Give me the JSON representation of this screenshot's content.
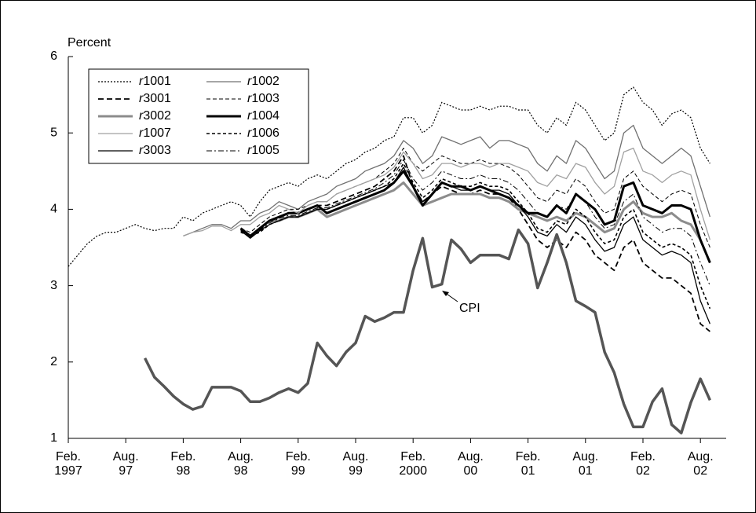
{
  "chart_data": {
    "type": "line",
    "y_label": "Percent",
    "annotation": "CPI",
    "ylim": [
      1,
      6
    ],
    "yticks": [
      1,
      2,
      3,
      4,
      5,
      6
    ],
    "categories": [
      "Feb.\n1997",
      null,
      null,
      null,
      null,
      null,
      "Aug.\n97",
      null,
      null,
      null,
      null,
      null,
      "Feb.\n98",
      null,
      null,
      null,
      null,
      null,
      "Aug.\n98",
      null,
      null,
      null,
      null,
      null,
      "Feb.\n99",
      null,
      null,
      null,
      null,
      null,
      "Aug.\n99",
      null,
      null,
      null,
      null,
      null,
      "Feb.\n2000",
      null,
      null,
      null,
      null,
      null,
      "Aug.\n00",
      null,
      null,
      null,
      null,
      null,
      "Feb.\n01",
      null,
      null,
      null,
      null,
      null,
      "Aug.\n01",
      null,
      null,
      null,
      null,
      null,
      "Feb.\n02",
      null,
      null,
      null,
      null,
      null,
      "Aug.\n02",
      null
    ],
    "series": [
      {
        "name": "r1001",
        "color": "#000000",
        "width": 1.2,
        "dash": "2,2",
        "values": [
          3.25,
          3.4,
          3.55,
          3.65,
          3.7,
          3.7,
          3.75,
          3.8,
          3.75,
          3.72,
          3.75,
          3.75,
          3.9,
          3.85,
          3.95,
          4.0,
          4.05,
          4.1,
          4.05,
          3.9,
          4.1,
          4.25,
          4.3,
          4.35,
          4.3,
          4.4,
          4.45,
          4.4,
          4.5,
          4.6,
          4.65,
          4.75,
          4.8,
          4.9,
          4.95,
          5.2,
          5.2,
          5.0,
          5.1,
          5.4,
          5.35,
          5.3,
          5.3,
          5.35,
          5.3,
          5.35,
          5.35,
          5.3,
          5.3,
          5.1,
          5.0,
          5.2,
          5.1,
          5.4,
          5.3,
          5.1,
          4.9,
          5.0,
          5.5,
          5.6,
          5.4,
          5.3,
          5.1,
          5.25,
          5.3,
          5.2,
          4.8,
          4.6
        ]
      },
      {
        "name": "r1002",
        "color": "#707070",
        "width": 1.3,
        "dash": "none",
        "values": [
          null,
          null,
          null,
          null,
          null,
          null,
          null,
          null,
          null,
          null,
          null,
          null,
          3.65,
          3.7,
          3.75,
          3.8,
          3.8,
          3.75,
          3.85,
          3.85,
          3.95,
          4.0,
          4.1,
          4.05,
          4.0,
          4.1,
          4.15,
          4.2,
          4.3,
          4.35,
          4.4,
          4.5,
          4.55,
          4.6,
          4.7,
          4.9,
          4.8,
          4.6,
          4.7,
          4.95,
          4.9,
          4.85,
          4.9,
          4.95,
          4.8,
          4.9,
          4.9,
          4.85,
          4.8,
          4.6,
          4.5,
          4.7,
          4.6,
          4.9,
          4.8,
          4.6,
          4.4,
          4.5,
          5.0,
          5.1,
          4.8,
          4.7,
          4.6,
          4.7,
          4.8,
          4.7,
          4.3,
          3.9
        ]
      },
      {
        "name": "r3001",
        "color": "#000000",
        "width": 1.8,
        "dash": "7,4",
        "values": [
          null,
          null,
          null,
          null,
          null,
          null,
          null,
          null,
          null,
          null,
          null,
          null,
          null,
          null,
          null,
          null,
          null,
          null,
          3.75,
          3.65,
          3.75,
          3.85,
          3.9,
          3.95,
          3.95,
          4.0,
          4.05,
          4.05,
          4.1,
          4.15,
          4.2,
          4.25,
          4.3,
          4.4,
          4.5,
          4.7,
          4.3,
          4.1,
          4.2,
          4.3,
          4.25,
          4.2,
          4.2,
          4.25,
          4.2,
          4.2,
          4.15,
          4.0,
          3.8,
          3.6,
          3.5,
          3.6,
          3.5,
          3.7,
          3.6,
          3.4,
          3.3,
          3.2,
          3.5,
          3.6,
          3.3,
          3.2,
          3.1,
          3.1,
          3.0,
          2.9,
          2.5,
          2.4
        ]
      },
      {
        "name": "r1003",
        "color": "#000000",
        "width": 1,
        "dash": "5,3",
        "values": [
          null,
          null,
          null,
          null,
          null,
          null,
          null,
          null,
          null,
          null,
          null,
          null,
          null,
          null,
          null,
          null,
          null,
          null,
          3.75,
          3.7,
          3.8,
          3.9,
          3.95,
          4.0,
          4.0,
          4.05,
          4.1,
          4.1,
          4.2,
          4.25,
          4.3,
          4.35,
          4.4,
          4.5,
          4.6,
          4.8,
          4.6,
          4.5,
          4.6,
          4.7,
          4.65,
          4.6,
          4.6,
          4.65,
          4.6,
          4.6,
          4.55,
          4.45,
          4.3,
          4.15,
          4.1,
          4.25,
          4.2,
          4.4,
          4.3,
          4.1,
          3.95,
          4.0,
          4.4,
          4.5,
          4.3,
          4.2,
          4.1,
          4.2,
          4.25,
          4.2,
          3.8,
          3.5
        ]
      },
      {
        "name": "r3002",
        "color": "#8c8c8c",
        "width": 3,
        "dash": "none",
        "values": [
          null,
          null,
          null,
          null,
          null,
          null,
          null,
          null,
          null,
          null,
          null,
          null,
          null,
          null,
          null,
          null,
          null,
          null,
          3.75,
          3.65,
          3.75,
          3.85,
          3.85,
          3.9,
          3.9,
          3.95,
          4.0,
          3.9,
          3.95,
          4.0,
          4.05,
          4.1,
          4.15,
          4.2,
          4.25,
          4.35,
          4.2,
          4.05,
          4.1,
          4.15,
          4.2,
          4.2,
          4.2,
          4.2,
          4.15,
          4.15,
          4.1,
          4.0,
          3.95,
          3.9,
          3.85,
          3.9,
          3.85,
          3.95,
          3.9,
          3.8,
          3.7,
          3.75,
          4.0,
          4.1,
          3.95,
          3.9,
          3.9,
          3.95,
          3.85,
          3.8,
          3.6,
          3.3
        ]
      },
      {
        "name": "r1004",
        "color": "#000000",
        "width": 3,
        "dash": "none",
        "values": [
          null,
          null,
          null,
          null,
          null,
          null,
          null,
          null,
          null,
          null,
          null,
          null,
          null,
          null,
          null,
          null,
          null,
          null,
          3.75,
          3.65,
          3.75,
          3.85,
          3.9,
          3.95,
          3.95,
          4.0,
          4.05,
          3.95,
          4.0,
          4.05,
          4.1,
          4.15,
          4.2,
          4.25,
          4.35,
          4.5,
          4.3,
          4.05,
          4.2,
          4.35,
          4.3,
          4.3,
          4.25,
          4.3,
          4.25,
          4.2,
          4.15,
          4.05,
          3.95,
          3.95,
          3.9,
          4.05,
          3.95,
          4.2,
          4.1,
          4.0,
          3.8,
          3.85,
          4.3,
          4.35,
          4.05,
          4.0,
          3.95,
          4.05,
          4.05,
          4.0,
          3.6,
          3.3
        ]
      },
      {
        "name": "r1007",
        "color": "#a0a0a0",
        "width": 1.3,
        "dash": "none",
        "values": [
          null,
          null,
          null,
          null,
          null,
          null,
          null,
          null,
          null,
          null,
          null,
          null,
          3.65,
          3.7,
          3.72,
          3.78,
          3.78,
          3.72,
          3.8,
          3.8,
          3.9,
          3.95,
          4.05,
          4.0,
          3.95,
          4.05,
          4.1,
          4.1,
          4.2,
          4.25,
          4.3,
          4.35,
          4.4,
          4.45,
          4.55,
          4.75,
          4.6,
          4.4,
          4.45,
          4.6,
          4.6,
          4.55,
          4.6,
          4.6,
          4.55,
          4.6,
          4.6,
          4.55,
          4.5,
          4.35,
          4.3,
          4.45,
          4.4,
          4.6,
          4.55,
          4.35,
          4.2,
          4.3,
          4.75,
          4.8,
          4.5,
          4.45,
          4.35,
          4.45,
          4.5,
          4.45,
          4.0,
          3.6
        ]
      },
      {
        "name": "r1006",
        "color": "#000000",
        "width": 1.6,
        "dash": "4,3",
        "values": [
          null,
          null,
          null,
          null,
          null,
          null,
          null,
          null,
          null,
          null,
          null,
          null,
          null,
          null,
          null,
          null,
          null,
          null,
          3.7,
          3.65,
          3.7,
          3.8,
          3.85,
          3.9,
          3.9,
          3.95,
          4.0,
          4.0,
          4.05,
          4.1,
          4.15,
          4.2,
          4.25,
          4.3,
          4.4,
          4.6,
          4.35,
          4.15,
          4.25,
          4.4,
          4.35,
          4.3,
          4.3,
          4.35,
          4.3,
          4.3,
          4.25,
          4.1,
          3.95,
          3.75,
          3.7,
          3.85,
          3.8,
          4.0,
          3.9,
          3.7,
          3.55,
          3.6,
          3.9,
          4.0,
          3.7,
          3.6,
          3.5,
          3.55,
          3.5,
          3.4,
          3.0,
          2.7
        ]
      },
      {
        "name": "r3003",
        "color": "#000000",
        "width": 1.3,
        "dash": "none",
        "values": [
          null,
          null,
          null,
          null,
          null,
          null,
          null,
          null,
          null,
          null,
          null,
          null,
          null,
          null,
          null,
          null,
          null,
          null,
          3.72,
          3.62,
          3.72,
          3.8,
          3.85,
          3.9,
          3.9,
          3.95,
          4.0,
          4.0,
          4.05,
          4.1,
          4.15,
          4.2,
          4.25,
          4.3,
          4.35,
          4.55,
          4.3,
          4.1,
          4.2,
          4.35,
          4.3,
          4.25,
          4.25,
          4.3,
          4.25,
          4.25,
          4.2,
          4.05,
          3.9,
          3.7,
          3.65,
          3.8,
          3.7,
          3.9,
          3.8,
          3.6,
          3.45,
          3.5,
          3.8,
          3.9,
          3.6,
          3.5,
          3.4,
          3.45,
          3.4,
          3.3,
          2.8,
          2.5
        ]
      },
      {
        "name": "r1005",
        "color": "#000000",
        "width": 1,
        "dash": "7,3,2,3",
        "values": [
          null,
          null,
          null,
          null,
          null,
          null,
          null,
          null,
          null,
          null,
          null,
          null,
          null,
          null,
          null,
          null,
          null,
          null,
          3.73,
          3.63,
          3.73,
          3.82,
          3.88,
          3.92,
          3.92,
          3.97,
          4.02,
          4.02,
          4.07,
          4.12,
          4.17,
          4.22,
          4.27,
          4.35,
          4.45,
          4.65,
          4.4,
          4.25,
          4.35,
          4.5,
          4.45,
          4.4,
          4.4,
          4.45,
          4.4,
          4.4,
          4.35,
          4.25,
          4.1,
          3.95,
          3.9,
          4.05,
          4.0,
          4.2,
          4.1,
          3.9,
          3.75,
          3.8,
          4.1,
          4.2,
          3.9,
          3.8,
          3.7,
          3.75,
          3.75,
          3.65,
          3.3,
          3.0
        ]
      },
      {
        "name": "CPI",
        "in_legend": false,
        "color": "#555555",
        "width": 3.5,
        "dash": "none",
        "values": [
          null,
          null,
          null,
          null,
          null,
          null,
          null,
          null,
          2.05,
          1.8,
          1.68,
          1.55,
          1.45,
          1.38,
          1.42,
          1.67,
          1.67,
          1.67,
          1.62,
          1.48,
          1.48,
          1.53,
          1.6,
          1.65,
          1.6,
          1.72,
          2.25,
          2.08,
          1.95,
          2.13,
          2.25,
          2.6,
          2.53,
          2.58,
          2.65,
          2.65,
          3.2,
          3.62,
          2.98,
          3.02,
          3.6,
          3.48,
          3.3,
          3.4,
          3.4,
          3.4,
          3.35,
          3.73,
          3.55,
          2.97,
          3.3,
          3.67,
          3.3,
          2.8,
          2.73,
          2.65,
          2.13,
          1.86,
          1.45,
          1.15,
          1.15,
          1.48,
          1.65,
          1.18,
          1.07,
          1.47,
          1.78,
          1.5
        ]
      }
    ]
  }
}
